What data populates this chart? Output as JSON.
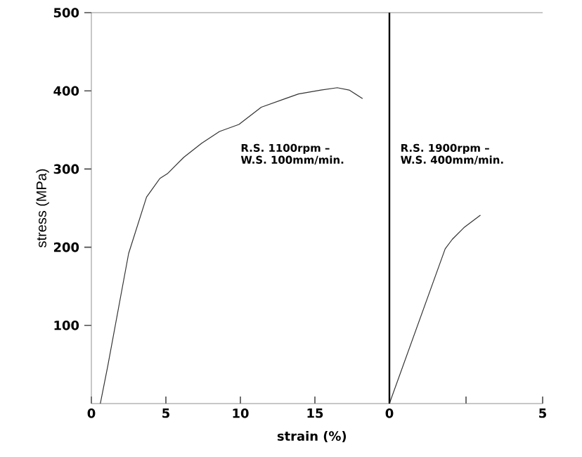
{
  "chart_data": [
    {
      "type": "line",
      "xlabel": "strain (%)",
      "ylabel": "stress (MPa)",
      "xlim": [
        0,
        20
      ],
      "xticks": [
        0,
        5,
        10,
        15
      ],
      "ylim": [
        0,
        500
      ],
      "yticks": [
        100,
        200,
        300,
        400,
        500
      ],
      "annotations": [
        "R.S.  1100rpm –",
        "W.S. 100mm/min."
      ],
      "series": [
        {
          "color": "#333333",
          "x": [
            0.6,
            1.1,
            2.5,
            3.7,
            4.6,
            5.1,
            6.2,
            7.4,
            8.6,
            9.9,
            11.4,
            13.0,
            13.9,
            15.4,
            16.5,
            17.3,
            18.2
          ],
          "values": [
            0,
            48,
            192,
            264,
            288,
            294,
            315,
            333,
            348,
            357,
            379,
            390,
            396,
            401,
            404,
            401,
            390
          ]
        }
      ]
    },
    {
      "type": "line",
      "xlim": [
        0,
        5
      ],
      "xticks": [
        0,
        {
          "value": 2.5,
          "label": null
        },
        5
      ],
      "ylim": [
        0,
        500
      ],
      "tick_labels": "x",
      "annotations": [
        "R.S.  1900rpm –",
        "W.S. 400mm/min."
      ],
      "series": [
        {
          "color": "#333333",
          "x": [
            0,
            1.82,
            2.05,
            2.43,
            2.97
          ],
          "values": [
            0,
            198,
            210,
            225,
            241
          ]
        }
      ]
    }
  ]
}
